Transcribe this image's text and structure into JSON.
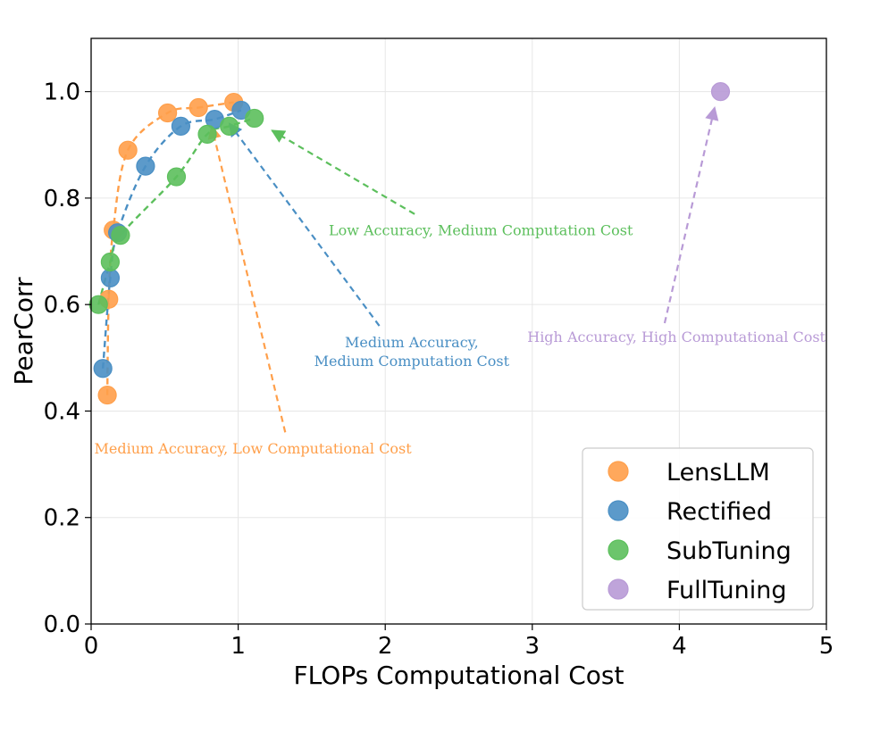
{
  "chart_data": {
    "type": "scatter",
    "xlabel": "FLOPs Computational Cost",
    "ylabel": "PearCorr",
    "xlim": [
      0,
      5
    ],
    "ylim": [
      0,
      1.1
    ],
    "xticks": [
      "0",
      "1",
      "2",
      "3",
      "4",
      "5"
    ],
    "yticks": [
      "0.0",
      "0.2",
      "0.4",
      "0.6",
      "0.8",
      "1.0"
    ],
    "grid": true,
    "legend_position": "bottom-right",
    "series": [
      {
        "name": "LensLLM",
        "color": "#ff9f4a",
        "points": [
          [
            0.11,
            0.43
          ],
          [
            0.12,
            0.61
          ],
          [
            0.15,
            0.74
          ],
          [
            0.25,
            0.89
          ],
          [
            0.52,
            0.96
          ],
          [
            0.73,
            0.97
          ],
          [
            0.97,
            0.98
          ]
        ]
      },
      {
        "name": "Rectified",
        "color": "#4a8fc4",
        "points": [
          [
            0.08,
            0.48
          ],
          [
            0.13,
            0.65
          ],
          [
            0.18,
            0.735
          ],
          [
            0.37,
            0.86
          ],
          [
            0.61,
            0.935
          ],
          [
            0.84,
            0.948
          ],
          [
            1.02,
            0.965
          ]
        ]
      },
      {
        "name": "SubTuning",
        "color": "#5cbf5c",
        "points": [
          [
            0.05,
            0.6
          ],
          [
            0.13,
            0.68
          ],
          [
            0.2,
            0.73
          ],
          [
            0.58,
            0.84
          ],
          [
            0.79,
            0.92
          ],
          [
            0.94,
            0.935
          ],
          [
            1.11,
            0.95
          ]
        ]
      },
      {
        "name": "FullTuning",
        "color": "#b89ad6",
        "points": [
          [
            4.28,
            1.0
          ]
        ]
      }
    ],
    "annotations": [
      {
        "lines": [
          "Medium Accuracy, Low Computational Cost"
        ],
        "color": "#ff9f4a",
        "text_x": 1.1,
        "text_y": 0.32,
        "arrow_from": [
          1.32,
          0.36
        ],
        "arrow_to": [
          0.82,
          0.935
        ]
      },
      {
        "lines": [
          "Medium Accuracy,",
          "Medium Computation Cost"
        ],
        "color": "#4a8fc4",
        "text_x": 2.18,
        "text_y": 0.52,
        "arrow_from": [
          1.96,
          0.56
        ],
        "arrow_to": [
          0.94,
          0.94
        ]
      },
      {
        "lines": [
          "Low Accuracy, Medium Computation Cost"
        ],
        "color": "#5cbf5c",
        "text_x": 2.65,
        "text_y": 0.73,
        "arrow_from": [
          2.2,
          0.77
        ],
        "arrow_to": [
          1.23,
          0.927
        ]
      },
      {
        "lines": [
          "High Accuracy, High Computational Cost"
        ],
        "color": "#b89ad6",
        "text_x": 3.98,
        "text_y": 0.53,
        "arrow_from": [
          3.9,
          0.565
        ],
        "arrow_to": [
          4.24,
          0.97
        ]
      }
    ]
  }
}
